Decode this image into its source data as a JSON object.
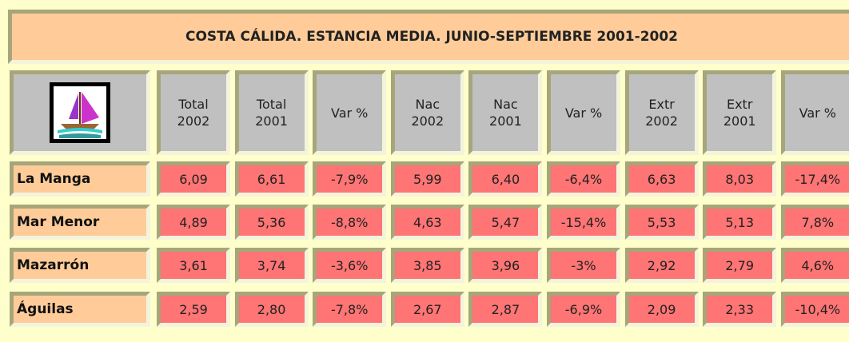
{
  "table": {
    "title": "COSTA CÁLIDA. ESTANCIA MEDIA. JUNIO-SEPTIEMBRE 2001-2002",
    "columns": [
      [
        "Total",
        "2002"
      ],
      [
        "Total",
        "2001"
      ],
      [
        "Var %"
      ],
      [
        "Nac",
        "2002"
      ],
      [
        "Nac",
        "2001"
      ],
      [
        "Var %"
      ],
      [
        "Extr",
        "2002"
      ],
      [
        "Extr",
        "2001"
      ],
      [
        "Var %"
      ]
    ],
    "rows": [
      {
        "label": "La Manga",
        "cells": [
          "6,09",
          "6,61",
          "-7,9%",
          "5,99",
          "6,40",
          "-6,4%",
          "6,63",
          "8,03",
          "-17,4%"
        ]
      },
      {
        "label": "Mar Menor",
        "cells": [
          "4,89",
          "5,36",
          "-8,8%",
          "4,63",
          "5,47",
          "-15,4%",
          "5,53",
          "5,13",
          "7,8%"
        ]
      },
      {
        "label": "Mazarrón",
        "cells": [
          "3,61",
          "3,74",
          "-3,6%",
          "3,85",
          "3,96",
          "-3%",
          "2,92",
          "2,79",
          "4,6%"
        ]
      },
      {
        "label": "Águilas",
        "cells": [
          "2,59",
          "2,80",
          "-7,8%",
          "2,67",
          "2,87",
          "-6,9%",
          "2,09",
          "2,33",
          "-10,4%"
        ]
      }
    ]
  }
}
